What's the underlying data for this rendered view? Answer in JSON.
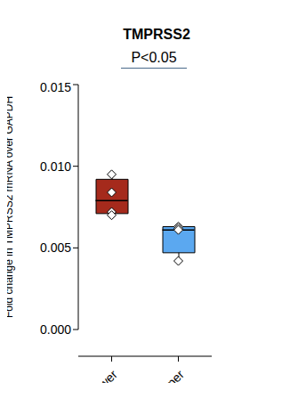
{
  "chart_data": {
    "type": "box",
    "title": "TMPRSS2",
    "y_label": "Fold change in TMPRSS2 mRNA over GAPDH",
    "categories": [
      "Lower",
      "Upper"
    ],
    "colors": [
      "#a52a1c",
      "#5ba8f0"
    ],
    "boxes": [
      {
        "min": 0.007,
        "q1": 0.0071,
        "median": 0.0079,
        "q3": 0.0092,
        "max": 0.0095
      },
      {
        "min": 0.0042,
        "q1": 0.0047,
        "median": 0.0061,
        "q3": 0.0063,
        "max": 0.0063
      }
    ],
    "points": [
      [
        0.0095,
        0.0084,
        0.0072,
        0.007
      ],
      [
        0.0063,
        0.0062,
        0.0061,
        0.0042
      ]
    ],
    "marker": "diamond",
    "ylim": [
      0,
      0.015
    ],
    "yticks": [
      {
        "value": 0,
        "label": "0.000"
      },
      {
        "value": 0.005,
        "label": "0.005"
      },
      {
        "value": 0.01,
        "label": "0.010"
      },
      {
        "value": 0.015,
        "label": "0.015"
      }
    ],
    "annotations": [
      {
        "text": "P<0.05"
      }
    ]
  }
}
